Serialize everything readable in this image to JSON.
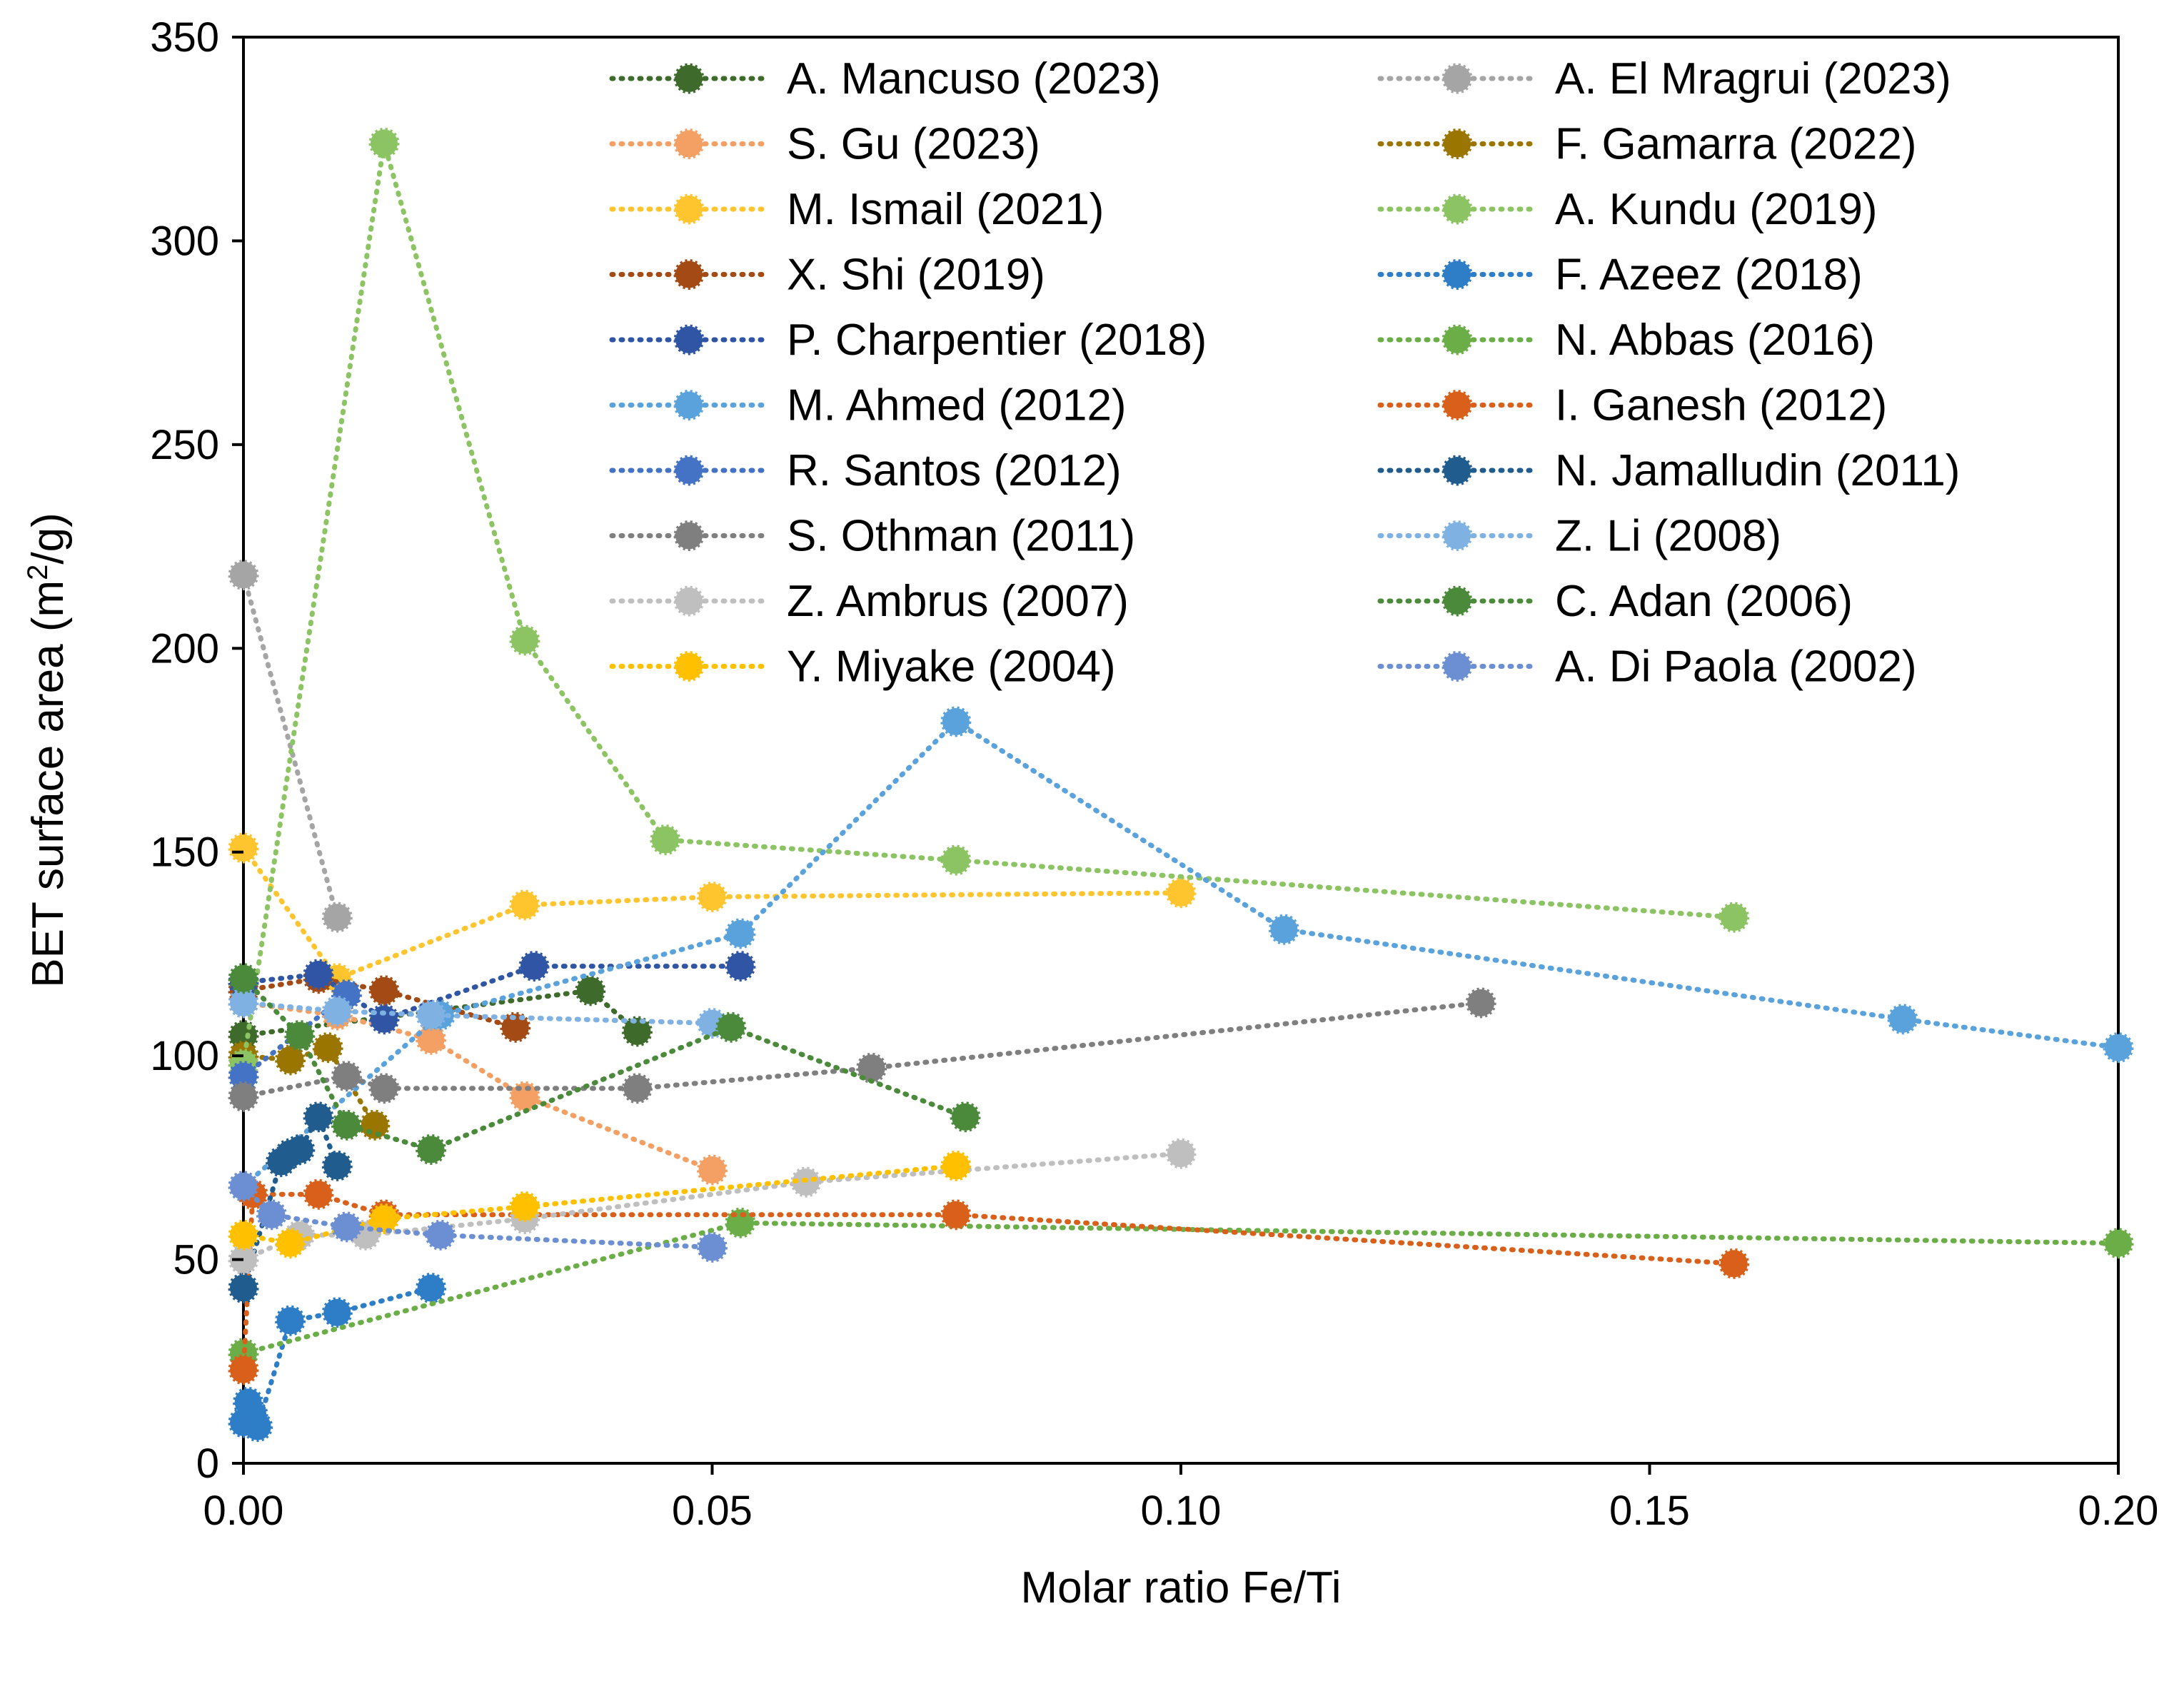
{
  "chart_data": {
    "type": "scatter",
    "title": "",
    "xlabel": "Molar ratio Fe/Ti",
    "ylabel_main": "BET surface area (m",
    "ylabel_sup": "2",
    "ylabel_tail": "/g)",
    "xlim": [
      0,
      0.2
    ],
    "ylim": [
      0,
      350
    ],
    "xticks": [
      0.0,
      0.05,
      0.1,
      0.15,
      0.2
    ],
    "xtick_labels": [
      "0.00",
      "0.05",
      "0.10",
      "0.15",
      "0.20"
    ],
    "yticks": [
      0,
      50,
      100,
      150,
      200,
      250,
      300,
      350
    ],
    "ytick_labels": [
      "0",
      "50",
      "100",
      "150",
      "200",
      "250",
      "300",
      "350"
    ],
    "grid": false,
    "legend_position": "top-right (two columns)",
    "series": [
      {
        "name": "A. Mancuso (2023)",
        "color": "#3E6B2C",
        "x": [
          0.0,
          0.037,
          0.042
        ],
        "y": [
          105,
          116,
          106
        ]
      },
      {
        "name": "A. El Mragrui (2023)",
        "color": "#A5A5A5",
        "x": [
          0.0,
          0.01
        ],
        "y": [
          218,
          134
        ]
      },
      {
        "name": "S. Gu (2023)",
        "color": "#F4A064",
        "x": [
          0.0,
          0.01,
          0.02,
          0.03,
          0.05
        ],
        "y": [
          113,
          110,
          104,
          90,
          72
        ]
      },
      {
        "name": "F. Gamarra (2022)",
        "color": "#9A7500",
        "x": [
          0.0,
          0.005,
          0.009,
          0.014
        ],
        "y": [
          100,
          99,
          102,
          83
        ]
      },
      {
        "name": "M. Ismail (2021)",
        "color": "#FFC52E",
        "x": [
          0.0,
          0.01,
          0.03,
          0.05,
          0.1
        ],
        "y": [
          151,
          119,
          137,
          139,
          140
        ]
      },
      {
        "name": "A. Kundu (2019)",
        "color": "#8DC463",
        "x": [
          0.0,
          0.015,
          0.03,
          0.045,
          0.076,
          0.159
        ],
        "y": [
          98,
          324,
          202,
          153,
          148,
          134
        ]
      },
      {
        "name": "X. Shi (2019)",
        "color": "#A44A14",
        "x": [
          0.0,
          0.008,
          0.015,
          0.029
        ],
        "y": [
          116,
          119,
          116,
          107
        ]
      },
      {
        "name": "F. Azeez (2018)",
        "color": "#2E7DC7",
        "x": [
          0.0,
          0.0005,
          0.001,
          0.0015,
          0.005,
          0.01,
          0.02
        ],
        "y": [
          10,
          15,
          12,
          9,
          35,
          37,
          43
        ]
      },
      {
        "name": "P. Charpentier (2018)",
        "color": "#2F55A4",
        "x": [
          0.0,
          0.008,
          0.015,
          0.031,
          0.053
        ],
        "y": [
          118,
          120,
          109,
          122,
          122
        ]
      },
      {
        "name": "N. Abbas (2016)",
        "color": "#6BAE47",
        "x": [
          0.0,
          0.053,
          0.2
        ],
        "y": [
          27,
          59,
          54
        ]
      },
      {
        "name": "M. Ahmed (2012)",
        "color": "#5AA2DC",
        "x": [
          0.0,
          0.021,
          0.053,
          0.076,
          0.111,
          0.177,
          0.2
        ],
        "y": [
          68,
          110,
          130,
          182,
          131,
          109,
          102
        ]
      },
      {
        "name": "I. Ganesh (2012)",
        "color": "#D9601A",
        "x": [
          0.0,
          0.001,
          0.008,
          0.015,
          0.076,
          0.159
        ],
        "y": [
          23,
          66,
          66,
          61,
          61,
          49
        ]
      },
      {
        "name": "R. Santos (2012)",
        "color": "#4472C4",
        "x": [
          0.0,
          0.011
        ],
        "y": [
          95,
          115
        ]
      },
      {
        "name": "N. Jamalludin (2011)",
        "color": "#215C8E",
        "x": [
          0.0,
          0.004,
          0.005,
          0.006,
          0.008,
          0.01
        ],
        "y": [
          43,
          74,
          76,
          77,
          85,
          73
        ]
      },
      {
        "name": "S. Othman (2011)",
        "color": "#7F7F7F",
        "x": [
          0.0,
          0.011,
          0.015,
          0.042,
          0.067,
          0.132
        ],
        "y": [
          90,
          95,
          92,
          92,
          97,
          113
        ]
      },
      {
        "name": "Z. Li (2008)",
        "color": "#7FB2E3",
        "x": [
          0.0,
          0.01,
          0.02,
          0.05
        ],
        "y": [
          113,
          111,
          110,
          108
        ]
      },
      {
        "name": "Z. Ambrus (2007)",
        "color": "#BFBFBF",
        "x": [
          0.0,
          0.006,
          0.013,
          0.03,
          0.06,
          0.1
        ],
        "y": [
          50,
          56,
          56,
          60,
          69,
          76
        ]
      },
      {
        "name": "C. Adan (2006)",
        "color": "#4A8A3A",
        "x": [
          0.0,
          0.006,
          0.011,
          0.02,
          0.052,
          0.077
        ],
        "y": [
          119,
          105,
          83,
          77,
          107,
          85
        ]
      },
      {
        "name": "Y. Miyake (2004)",
        "color": "#FFC000",
        "x": [
          0.0,
          0.005,
          0.015,
          0.03,
          0.076
        ],
        "y": [
          56,
          54,
          60,
          63,
          73
        ]
      },
      {
        "name": "A. Di Paola (2002)",
        "color": "#6C8FD3",
        "x": [
          0.0,
          0.003,
          0.011,
          0.021,
          0.05
        ],
        "y": [
          68,
          61,
          58,
          56,
          53
        ]
      }
    ]
  }
}
